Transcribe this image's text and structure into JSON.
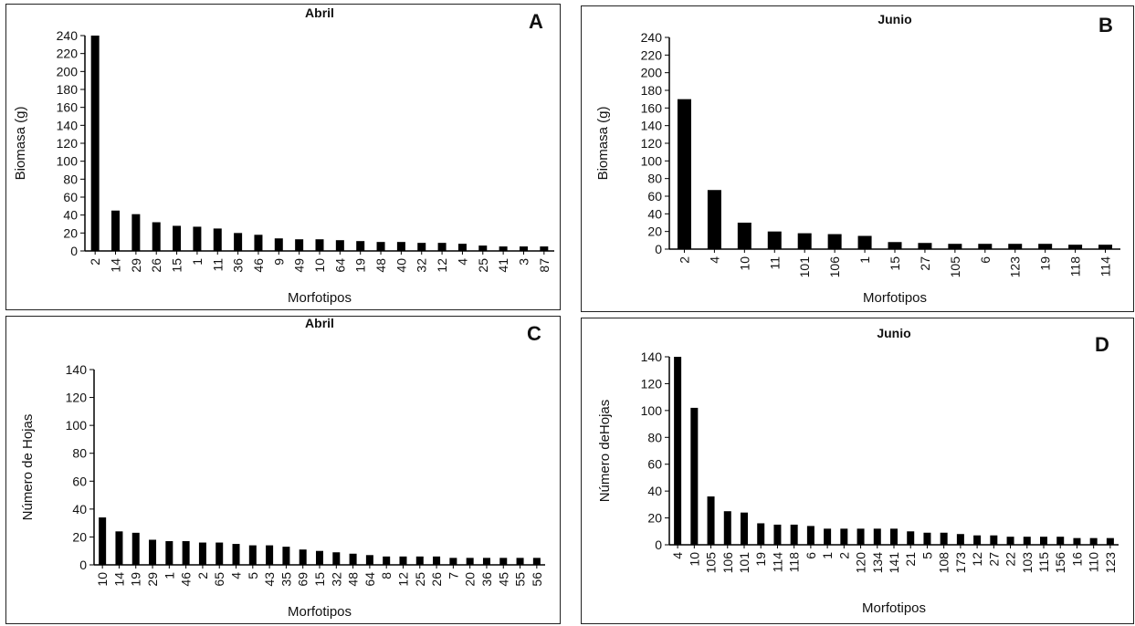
{
  "chart_data": [
    {
      "type": "bar",
      "panel_letter": "A",
      "title": "Abril",
      "xlabel": "Morfotipos",
      "ylabel": "Biomasa (g)",
      "ylim": [
        0,
        240
      ],
      "yticks": [
        0,
        20,
        40,
        60,
        80,
        100,
        120,
        140,
        160,
        180,
        200,
        220,
        240
      ],
      "categories": [
        "2",
        "14",
        "29",
        "26",
        "15",
        "1",
        "11",
        "36",
        "46",
        "9",
        "49",
        "10",
        "64",
        "19",
        "48",
        "40",
        "32",
        "12",
        "4",
        "25",
        "41",
        "3",
        "87"
      ],
      "values": [
        240,
        45,
        41,
        32,
        28,
        27,
        25,
        20,
        18,
        14,
        13,
        13,
        12,
        11,
        10,
        10,
        9,
        9,
        8,
        6,
        5,
        5,
        5
      ],
      "grid": false,
      "color": "#000000"
    },
    {
      "type": "bar",
      "panel_letter": "B",
      "title": "Junio",
      "xlabel": "Morfotipos",
      "ylabel": "Biomasa (g)",
      "ylim": [
        0,
        240
      ],
      "yticks": [
        0,
        20,
        40,
        60,
        80,
        100,
        120,
        140,
        160,
        180,
        200,
        220,
        240
      ],
      "categories": [
        "2",
        "4",
        "10",
        "11",
        "101",
        "106",
        "1",
        "15",
        "27",
        "105",
        "6",
        "123",
        "19",
        "118",
        "114"
      ],
      "values": [
        170,
        67,
        30,
        20,
        18,
        17,
        15,
        8,
        7,
        6,
        6,
        6,
        6,
        5,
        5
      ],
      "grid": false,
      "color": "#000000"
    },
    {
      "type": "bar",
      "panel_letter": "C",
      "title": "Abril",
      "xlabel": "Morfotipos",
      "ylabel": "Número de Hojas",
      "ylim": [
        0,
        140
      ],
      "yticks": [
        0,
        20,
        40,
        60,
        80,
        100,
        120,
        140
      ],
      "categories": [
        "10",
        "14",
        "19",
        "29",
        "1",
        "46",
        "2",
        "65",
        "4",
        "5",
        "43",
        "35",
        "69",
        "15",
        "32",
        "48",
        "64",
        "8",
        "12",
        "25",
        "26",
        "7",
        "20",
        "36",
        "45",
        "55",
        "56"
      ],
      "values": [
        34,
        24,
        23,
        18,
        17,
        17,
        16,
        16,
        15,
        14,
        14,
        13,
        11,
        10,
        9,
        8,
        7,
        6,
        6,
        6,
        6,
        5,
        5,
        5,
        5,
        5,
        5
      ],
      "grid": false,
      "color": "#000000"
    },
    {
      "type": "bar",
      "panel_letter": "D",
      "title": "Junio",
      "xlabel": "Morfotipos",
      "ylabel": "Número deHojas",
      "ylim": [
        0,
        140
      ],
      "yticks": [
        0,
        20,
        40,
        60,
        80,
        100,
        120,
        140
      ],
      "categories": [
        "4",
        "10",
        "105",
        "106",
        "101",
        "19",
        "114",
        "118",
        "6",
        "1",
        "2",
        "120",
        "134",
        "141",
        "21",
        "5",
        "108",
        "173",
        "12",
        "27",
        "22",
        "103",
        "115",
        "156",
        "16",
        "110",
        "123"
      ],
      "values": [
        140,
        102,
        36,
        25,
        24,
        16,
        15,
        15,
        14,
        12,
        12,
        12,
        12,
        12,
        10,
        9,
        9,
        8,
        7,
        7,
        6,
        6,
        6,
        6,
        5,
        5,
        5
      ],
      "grid": false,
      "color": "#000000"
    }
  ]
}
